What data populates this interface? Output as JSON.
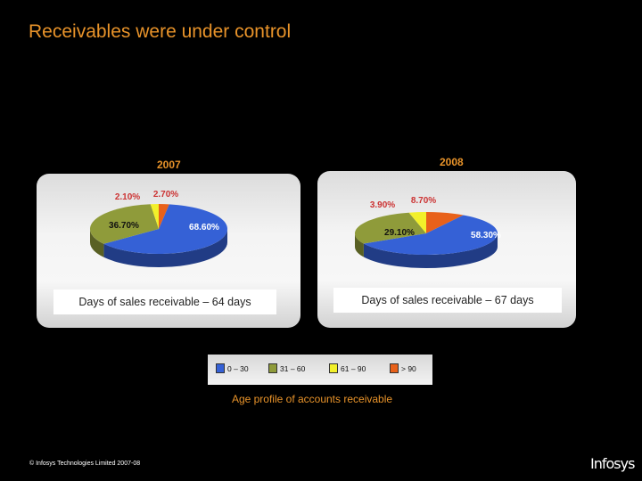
{
  "slide": {
    "title": "Receivables were under control",
    "footer": "© Infosys Technologies Limited 2007-08",
    "logo": "Infosys"
  },
  "chart_data": {
    "type": "pie",
    "title": "Age profile of accounts receivable",
    "legend": {
      "placement": "bottom-center",
      "entries": [
        {
          "label": "0 – 30",
          "color": "#3561d6"
        },
        {
          "label": "31 – 60",
          "color": "#8f9b3a"
        },
        {
          "label": "61 – 90",
          "color": "#f2f02a"
        },
        {
          "label": "> 90",
          "color": "#e8611a"
        }
      ]
    },
    "charts": [
      {
        "year": "2007",
        "caption": "Days of sales receivable – 64 days",
        "slices": [
          {
            "category": "0 – 30",
            "value": 68.6,
            "label": "68.60%"
          },
          {
            "category": "31 – 60",
            "value": 36.7,
            "label": "36.70%"
          },
          {
            "category": "61 – 90",
            "value": 2.1,
            "label": "2.10%"
          },
          {
            "category": "> 90",
            "value": 2.7,
            "label": "2.70%"
          }
        ]
      },
      {
        "year": "2008",
        "caption": "Days of sales receivable – 67 days",
        "slices": [
          {
            "category": "0 – 30",
            "value": 58.3,
            "label": "58.30%"
          },
          {
            "category": "31 – 60",
            "value": 29.1,
            "label": "29.10%"
          },
          {
            "category": "61 – 90",
            "value": 3.9,
            "label": "3.90%"
          },
          {
            "category": "> 90",
            "value": 8.7,
            "label": "8.70%"
          }
        ]
      }
    ]
  }
}
